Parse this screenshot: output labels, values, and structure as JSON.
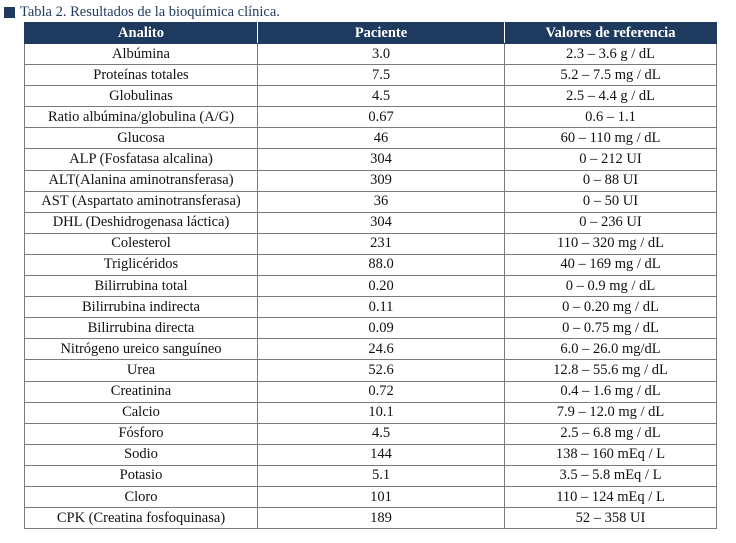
{
  "caption": "Tabla 2. Resultados de la bioquímica clínica.",
  "colors": {
    "header_bg": "#1f3a5f",
    "header_text": "#ffffff",
    "caption_text": "#1f3a5f"
  },
  "icons": {
    "caption_marker": "filled-square-icon"
  },
  "table": {
    "headers": [
      "Analito",
      "Paciente",
      "Valores de referencia"
    ],
    "rows": [
      [
        "Albúmina",
        "3.0",
        "2.3 – 3.6 g / dL"
      ],
      [
        "Proteínas totales",
        "7.5",
        "5.2 – 7.5 mg / dL"
      ],
      [
        "Globulinas",
        "4.5",
        "2.5 – 4.4 g / dL"
      ],
      [
        "Ratio albúmina/globulina (A/G)",
        "0.67",
        "0.6 – 1.1"
      ],
      [
        "Glucosa",
        "46",
        "60 – 110 mg / dL"
      ],
      [
        "ALP (Fosfatasa alcalina)",
        "304",
        "0 – 212 UI"
      ],
      [
        "ALT(Alanina aminotransferasa)",
        "309",
        "0 – 88 UI"
      ],
      [
        "AST (Aspartato aminotransferasa)",
        "36",
        "0 – 50 UI"
      ],
      [
        "DHL (Deshidrogenasa láctica)",
        "304",
        "0 – 236 UI"
      ],
      [
        "Colesterol",
        "231",
        "110 – 320 mg / dL"
      ],
      [
        "Triglicéridos",
        "88.0",
        "40 – 169 mg / dL"
      ],
      [
        "Bilirrubina total",
        "0.20",
        "0 – 0.9 mg / dL"
      ],
      [
        "Bilirrubina indirecta",
        "0.11",
        "0 – 0.20 mg / dL"
      ],
      [
        "Bilirrubina directa",
        "0.09",
        "0 – 0.75 mg / dL"
      ],
      [
        "Nitrógeno ureico sanguíneo",
        "24.6",
        "6.0 – 26.0 mg/dL"
      ],
      [
        "Urea",
        "52.6",
        "12.8 – 55.6 mg / dL"
      ],
      [
        "Creatinina",
        "0.72",
        "0.4 – 1.6 mg / dL"
      ],
      [
        "Calcio",
        "10.1",
        "7.9 – 12.0 mg / dL"
      ],
      [
        "Fósforo",
        "4.5",
        "2.5 – 6.8 mg / dL"
      ],
      [
        "Sodio",
        "144",
        "138 – 160 mEq / L"
      ],
      [
        "Potasio",
        "5.1",
        "3.5 – 5.8 mEq / L"
      ],
      [
        "Cloro",
        "101",
        "110 – 124 mEq / L"
      ],
      [
        "CPK (Creatina fosfoquinasa)",
        "189",
        "52 – 358 UI"
      ]
    ]
  }
}
